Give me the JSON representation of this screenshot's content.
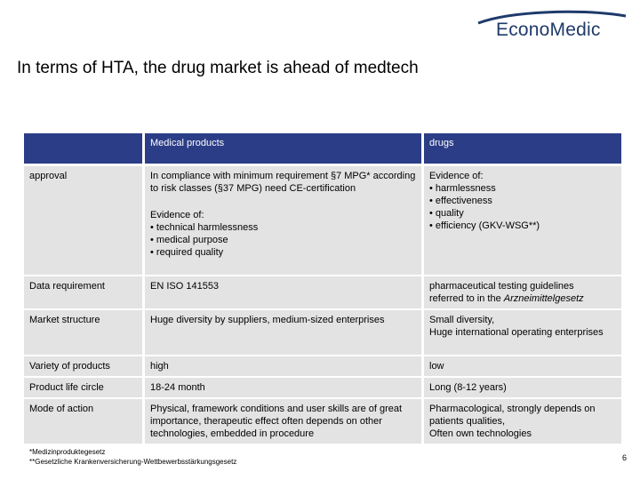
{
  "brand": {
    "logo_text": "EconoMedic"
  },
  "title": "In terms of HTA, the drug market is ahead of medtech",
  "table": {
    "headers": [
      "",
      "Medical products",
      "drugs"
    ],
    "rows": [
      {
        "label": "approval",
        "medical_para1": "In compliance with minimum requirement §7 MPG* according to risk classes (§37 MPG) need CE-certification",
        "medical_para2_title": "Evidence of:",
        "medical_para2_items": [
          "• technical harmlessness",
          "• medical purpose",
          "• required quality"
        ],
        "drugs_title": "Evidence of:",
        "drugs_items": [
          "• harmlessness",
          "• effectiveness",
          "• quality",
          "• efficiency (GKV-WSG**)"
        ]
      },
      {
        "label": "Data requirement",
        "medical": "EN ISO 141553",
        "drugs_line1": "pharmaceutical testing guidelines",
        "drugs_line2_prefix": "referred to in the ",
        "drugs_line2_italic": "Arzneimittelgesetz"
      },
      {
        "label": "Market structure",
        "medical": "Huge diversity by suppliers, medium-sized enterprises",
        "drugs_lines": [
          "Small diversity,",
          "Huge international operating enterprises"
        ]
      },
      {
        "label": "Variety of products",
        "medical": "high",
        "drugs": "low"
      },
      {
        "label": "Product  life circle",
        "medical": "18-24 month",
        "drugs": "Long (8-12 years)"
      },
      {
        "label": "Mode of action",
        "medical": "Physical, framework conditions and user skills are of great importance, therapeutic effect often depends on other technologies, embedded in procedure",
        "drugs_lines": [
          "Pharmacological, strongly depends on patients qualities,",
          "Often own technologies"
        ]
      }
    ]
  },
  "footnotes": [
    "*Medizinproduktegesetz",
    "**Gesetzliche Krankenversicherung-Wettbewerbsstärkungsgesetz"
  ],
  "page_number": "6",
  "colors": {
    "header_bg": "#2b3d87",
    "cell_bg": "#e3e3e3",
    "logo": "#1f3a6b"
  }
}
